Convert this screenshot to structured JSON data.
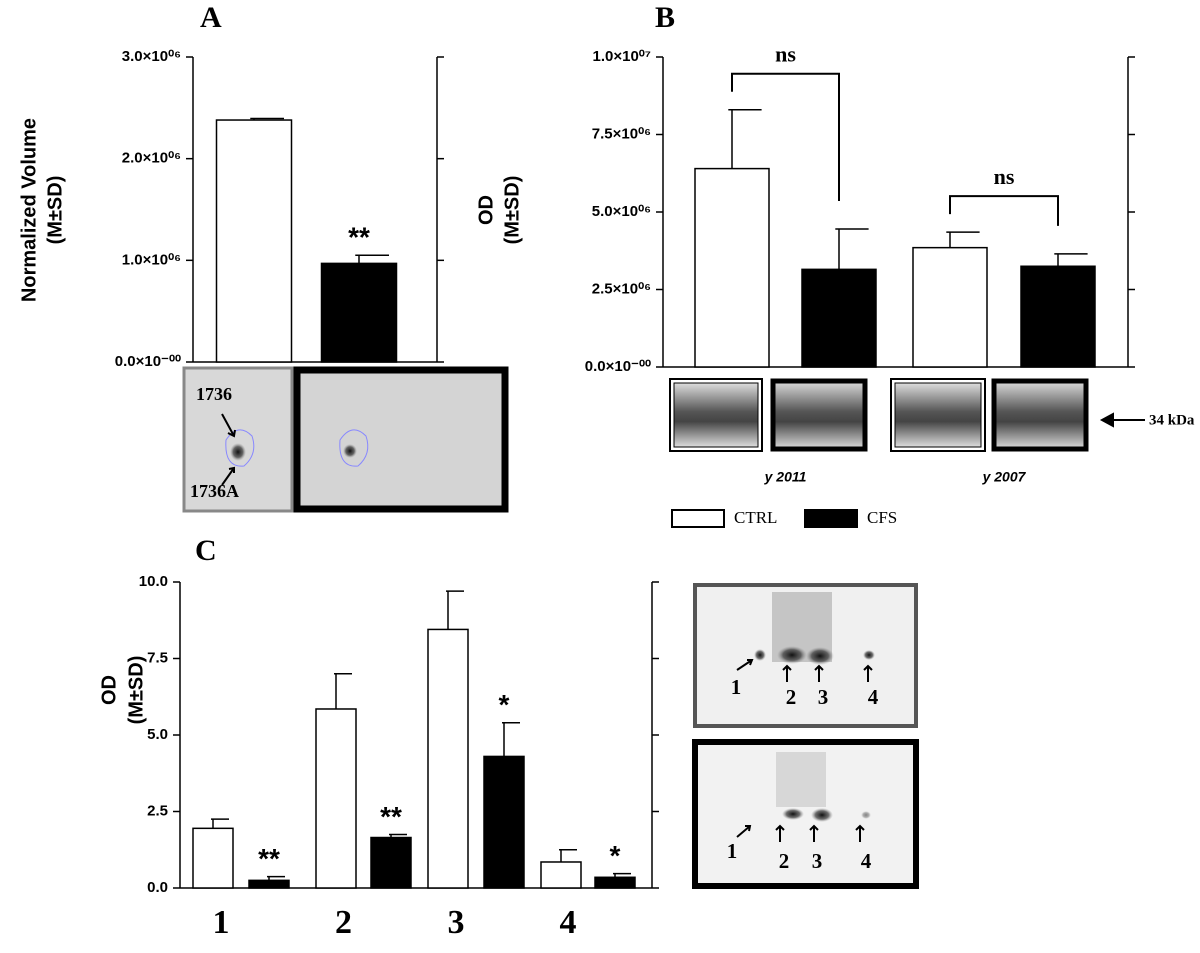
{
  "chart_data": [
    {
      "panel": "A",
      "type": "bar",
      "ylabel": [
        "Normalized Volume",
        "(M±SD)"
      ],
      "categories": [
        null
      ],
      "series": [
        {
          "color": "#ffffff",
          "values": [
            2380000
          ],
          "errors": [
            15000
          ]
        },
        {
          "color": "#000000",
          "values": [
            970000
          ],
          "errors": [
            80000
          ],
          "annotations": [
            "**"
          ]
        }
      ],
      "ylim": [
        0,
        3000000
      ],
      "yticks": [
        {
          "value": 0,
          "label": "0.0×10⁻⁰⁰"
        },
        {
          "value": 1000000,
          "label": "1.0×10⁰⁶"
        },
        {
          "value": 2000000,
          "label": "2.0×10⁰⁶"
        },
        {
          "value": 3000000,
          "label": "3.0×10⁰⁶"
        }
      ],
      "blot_labels": [
        "1736",
        "1736A"
      ]
    },
    {
      "panel": "B",
      "type": "bar",
      "ylabel": [
        "OD",
        "(M±SD)"
      ],
      "categories": [
        "y 2011",
        "y 2007"
      ],
      "series": [
        {
          "name": "CTRL",
          "color": "#ffffff",
          "values": [
            6400000,
            3850000
          ],
          "errors": [
            1900000,
            500000
          ]
        },
        {
          "name": "CFS",
          "color": "#000000",
          "values": [
            3150000,
            3250000
          ],
          "errors": [
            1300000,
            400000
          ]
        }
      ],
      "brackets": [
        "ns",
        "ns"
      ],
      "ylim": [
        0,
        10000000
      ],
      "yticks": [
        {
          "value": 0,
          "label": "0.0×10⁻⁰⁰"
        },
        {
          "value": 2500000,
          "label": "2.5×10⁰⁶"
        },
        {
          "value": 5000000,
          "label": "5.0×10⁰⁶"
        },
        {
          "value": 7500000,
          "label": "7.5×10⁰⁶"
        },
        {
          "value": 10000000,
          "label": "1.0×10⁰⁷"
        }
      ],
      "marker_label": "34 kDa"
    },
    {
      "panel": "C",
      "type": "bar",
      "ylabel": [
        "OD",
        "(M±SD)"
      ],
      "categories": [
        "1",
        "2",
        "3",
        "4"
      ],
      "series": [
        {
          "color": "#ffffff",
          "values": [
            1.95,
            5.85,
            8.45,
            0.85
          ],
          "errors": [
            0.3,
            1.15,
            1.25,
            0.4
          ]
        },
        {
          "color": "#000000",
          "values": [
            0.25,
            1.65,
            4.3,
            0.35
          ],
          "errors": [
            0.12,
            0.1,
            1.1,
            0.12
          ],
          "annotations": [
            "**",
            "**",
            "*",
            "*"
          ]
        }
      ],
      "ylim": [
        0,
        10
      ],
      "yticks": [
        {
          "value": 0,
          "label": "0.0"
        },
        {
          "value": 2.5,
          "label": "2.5"
        },
        {
          "value": 5,
          "label": "5.0"
        },
        {
          "value": 7.5,
          "label": "7.5"
        },
        {
          "value": 10,
          "label": "10.0"
        }
      ],
      "gel_labels": [
        "1",
        "2",
        "3",
        "4"
      ]
    }
  ]
}
